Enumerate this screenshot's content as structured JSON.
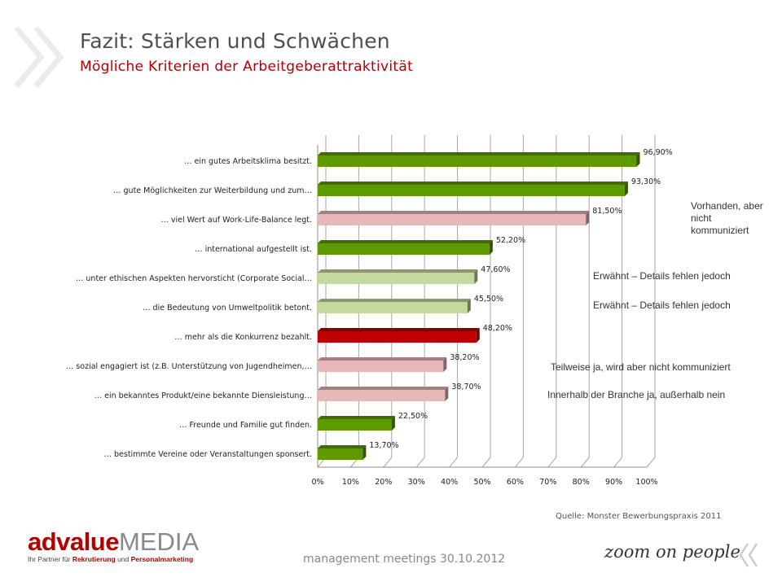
{
  "header": {
    "title": "Fazit: Stärken und Schwächen",
    "subtitle": "Mögliche Kriterien der Arbeitgeberattraktivität"
  },
  "chart_data": {
    "type": "bar",
    "orientation": "horizontal",
    "categories": [
      "… ein gutes Arbeitsklima besitzt.",
      "… gute Möglichkeiten zur Weiterbildung und zum…",
      "… viel Wert auf Work-Life-Balance legt.",
      "… international aufgestellt ist.",
      "… unter ethischen Aspekten hervorsticht (Corporate Social…",
      "… die Bedeutung von Umweltpolitik betont.",
      "… mehr als die Konkurrenz bezahlt.",
      "… sozial engagiert ist (z.B. Unterstützung von Jugendheimen,…",
      "… ein bekanntes Produkt/eine bekannte Diensleistung…",
      "… Freunde und Familie gut finden.",
      "… bestimmte Vereine oder Veranstaltungen sponsert."
    ],
    "values": [
      96.9,
      93.3,
      81.5,
      52.2,
      47.6,
      45.5,
      48.2,
      38.2,
      38.7,
      22.5,
      13.7
    ],
    "value_labels": [
      "96,90%",
      "93,30%",
      "81,50%",
      "52,20%",
      "47,60%",
      "45,50%",
      "48,20%",
      "38,20%",
      "38,70%",
      "22,50%",
      "13,70%"
    ],
    "bar_colors": [
      "#5f9900",
      "#5f9900",
      "#e8b7b7",
      "#5f9900",
      "#c4d99b",
      "#c4d99b",
      "#c00000",
      "#e8b7b7",
      "#e8b7b7",
      "#5f9900",
      "#5f9900"
    ],
    "xticks": [
      "0%",
      "10%",
      "20%",
      "30%",
      "40%",
      "50%",
      "60%",
      "70%",
      "80%",
      "90%",
      "100%"
    ],
    "xlim": [
      0,
      100
    ],
    "grid": true
  },
  "annotations": [
    "Vorhanden, aber nicht kommuniziert",
    "Erwähnt – Details fehlen jedoch",
    "Erwähnt – Details fehlen jedoch",
    "Teilweise ja, wird aber nicht kommuniziert",
    "Innerhalb der Branche ja, außerhalb nein"
  ],
  "source": "Quelle: Monster Bewerbungspraxis 2011",
  "footer": "management meetings 30.10.2012",
  "logo": {
    "brand_bold": "advalue",
    "brand_light": "MEDIA",
    "tagline_pre": "Ihr Partner für ",
    "tagline_b1": "Rekrutierung",
    "tagline_mid": " und ",
    "tagline_b2": "Personalmarketing"
  },
  "slogan": "zoom on people",
  "colors": {
    "accent": "#b40000",
    "green": "#5f9900",
    "light_green": "#c4d99b",
    "pink": "#e8b7b7",
    "red": "#c00000"
  }
}
